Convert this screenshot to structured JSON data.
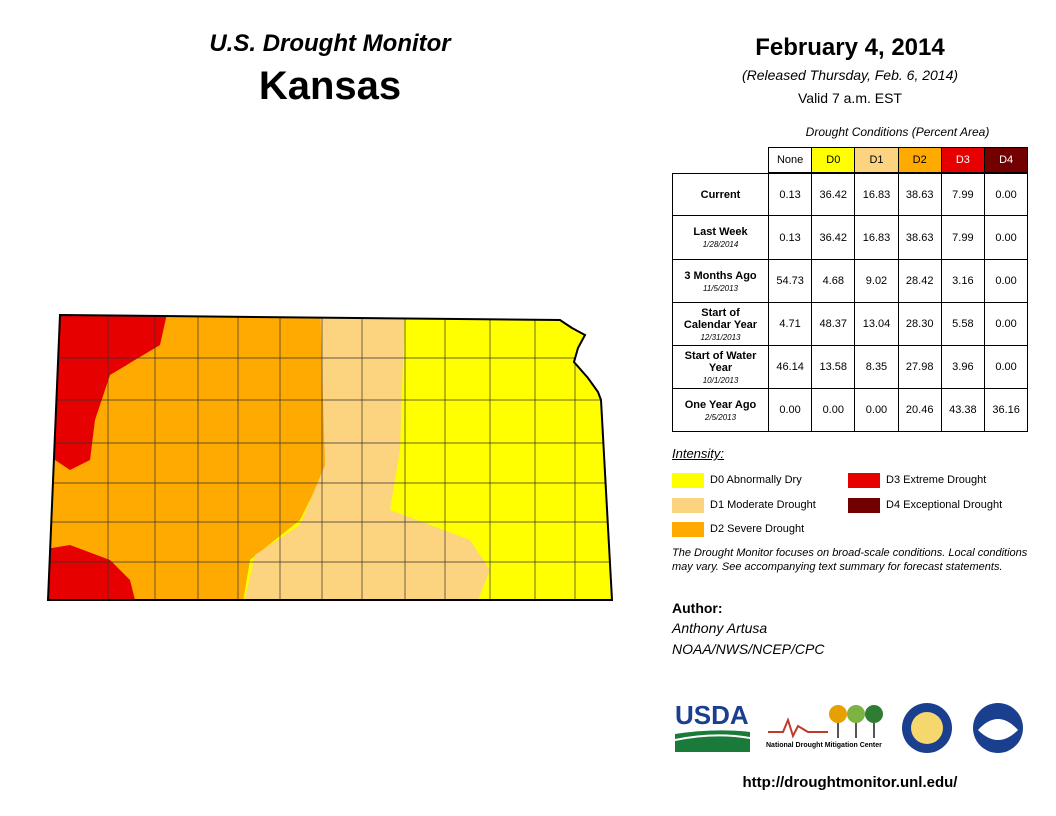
{
  "header": {
    "program": "U.S. Drought Monitor",
    "state": "Kansas",
    "date": "February 4, 2014",
    "released": "(Released Thursday, Feb. 6, 2014)",
    "valid": "Valid 7 a.m. EST"
  },
  "table": {
    "caption": "Drought Conditions (Percent Area)",
    "columns": [
      "None",
      "D0",
      "D1",
      "D2",
      "D3",
      "D4"
    ],
    "rows": [
      {
        "label": "Current",
        "values": [
          "0.13",
          "36.42",
          "16.83",
          "38.63",
          "7.99",
          "0.00"
        ]
      },
      {
        "label": "Last Week",
        "date": "1/28/2014",
        "values": [
          "0.13",
          "36.42",
          "16.83",
          "38.63",
          "7.99",
          "0.00"
        ]
      },
      {
        "label": "3 Months Ago",
        "date": "11/5/2013",
        "values": [
          "54.73",
          "4.68",
          "9.02",
          "28.42",
          "3.16",
          "0.00"
        ]
      },
      {
        "label": "Start of Calendar Year",
        "date": "12/31/2013",
        "values": [
          "4.71",
          "48.37",
          "13.04",
          "28.30",
          "5.58",
          "0.00"
        ]
      },
      {
        "label": "Start of Water Year",
        "date": "10/1/2013",
        "values": [
          "46.14",
          "13.58",
          "8.35",
          "27.98",
          "3.96",
          "0.00"
        ]
      },
      {
        "label": "One Year Ago",
        "date": "2/5/2013",
        "values": [
          "0.00",
          "0.00",
          "0.00",
          "20.46",
          "43.38",
          "36.16"
        ]
      }
    ]
  },
  "legend": {
    "title": "Intensity:",
    "items": [
      {
        "label": "D0 Abnormally Dry",
        "color": "#ffff00"
      },
      {
        "label": "D1 Moderate Drought",
        "color": "#fcd37f"
      },
      {
        "label": "D2 Severe Drought",
        "color": "#ffaa00"
      },
      {
        "label": "D3 Extreme Drought",
        "color": "#e60000"
      },
      {
        "label": "D4 Exceptional Drought",
        "color": "#730000"
      }
    ]
  },
  "note": "The Drought Monitor focuses on broad-scale conditions. Local conditions may vary. See accompanying text summary for forecast statements.",
  "author": {
    "label": "Author:",
    "name": "Anthony Artusa",
    "org": "NOAA/NWS/NCEP/CPC"
  },
  "logos": [
    "USDA",
    "National Drought Mitigation Center"
  ],
  "url": "http://droughtmonitor.unl.edu/"
}
